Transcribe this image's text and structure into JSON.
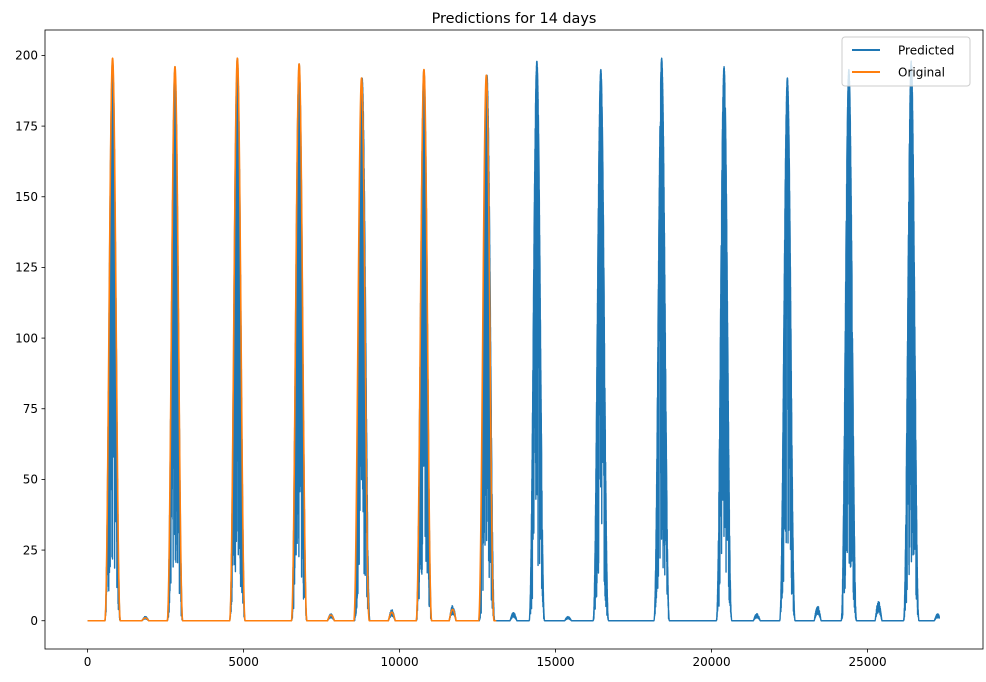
{
  "chart_data": {
    "type": "line",
    "title": "Predictions for 14 days",
    "xlabel": "",
    "ylabel": "",
    "xlim": [
      -1366,
      28700
    ],
    "ylim": [
      -10,
      209
    ],
    "xticks": [
      0,
      5000,
      10000,
      15000,
      20000,
      25000
    ],
    "yticks": [
      0,
      25,
      50,
      75,
      100,
      125,
      150,
      175,
      200
    ],
    "grid": false,
    "legend_position": "top-right",
    "series": [
      {
        "name": "Predicted",
        "color": "#1f77b4",
        "x_range": [
          0,
          27300
        ],
        "day_length": 1950,
        "peaks": [
          {
            "center": 800,
            "height": 198,
            "noisy": true
          },
          {
            "center": 2800,
            "height": 196,
            "noisy": true
          },
          {
            "center": 4800,
            "height": 199,
            "noisy": true
          },
          {
            "center": 6780,
            "height": 197,
            "noisy": true
          },
          {
            "center": 8800,
            "height": 192,
            "noisy": true
          },
          {
            "center": 10780,
            "height": 195,
            "noisy": true
          },
          {
            "center": 12800,
            "height": 193,
            "noisy": true
          },
          {
            "center": 14400,
            "height": 198,
            "noisy": true
          },
          {
            "center": 16450,
            "height": 195,
            "noisy": true
          },
          {
            "center": 18400,
            "height": 199,
            "noisy": true
          },
          {
            "center": 20400,
            "height": 196,
            "noisy": true
          },
          {
            "center": 22430,
            "height": 192,
            "noisy": true
          },
          {
            "center": 24400,
            "height": 195,
            "noisy": true
          },
          {
            "center": 26400,
            "height": 198,
            "noisy": true
          }
        ],
        "small_bumps": [
          {
            "center": 1850,
            "height": 1.5
          },
          {
            "center": 7800,
            "height": 2.5
          },
          {
            "center": 9750,
            "height": 4
          },
          {
            "center": 11700,
            "height": 5.5
          },
          {
            "center": 13650,
            "height": 3
          },
          {
            "center": 15400,
            "height": 1.5
          },
          {
            "center": 21450,
            "height": 2.5
          },
          {
            "center": 23400,
            "height": 5.5
          },
          {
            "center": 25350,
            "height": 7
          },
          {
            "center": 27250,
            "height": 2.5
          }
        ]
      },
      {
        "name": "Original",
        "color": "#ff7f0e",
        "x_range": [
          0,
          13100
        ],
        "peaks": [
          {
            "center": 800,
            "height": 199
          },
          {
            "center": 2800,
            "height": 196
          },
          {
            "center": 4800,
            "height": 199
          },
          {
            "center": 6780,
            "height": 197
          },
          {
            "center": 8780,
            "height": 192
          },
          {
            "center": 10780,
            "height": 195
          },
          {
            "center": 12780,
            "height": 193
          }
        ],
        "small_bumps": [
          {
            "center": 1850,
            "height": 1
          },
          {
            "center": 7800,
            "height": 2
          },
          {
            "center": 9750,
            "height": 3
          },
          {
            "center": 11700,
            "height": 4
          }
        ]
      }
    ]
  }
}
